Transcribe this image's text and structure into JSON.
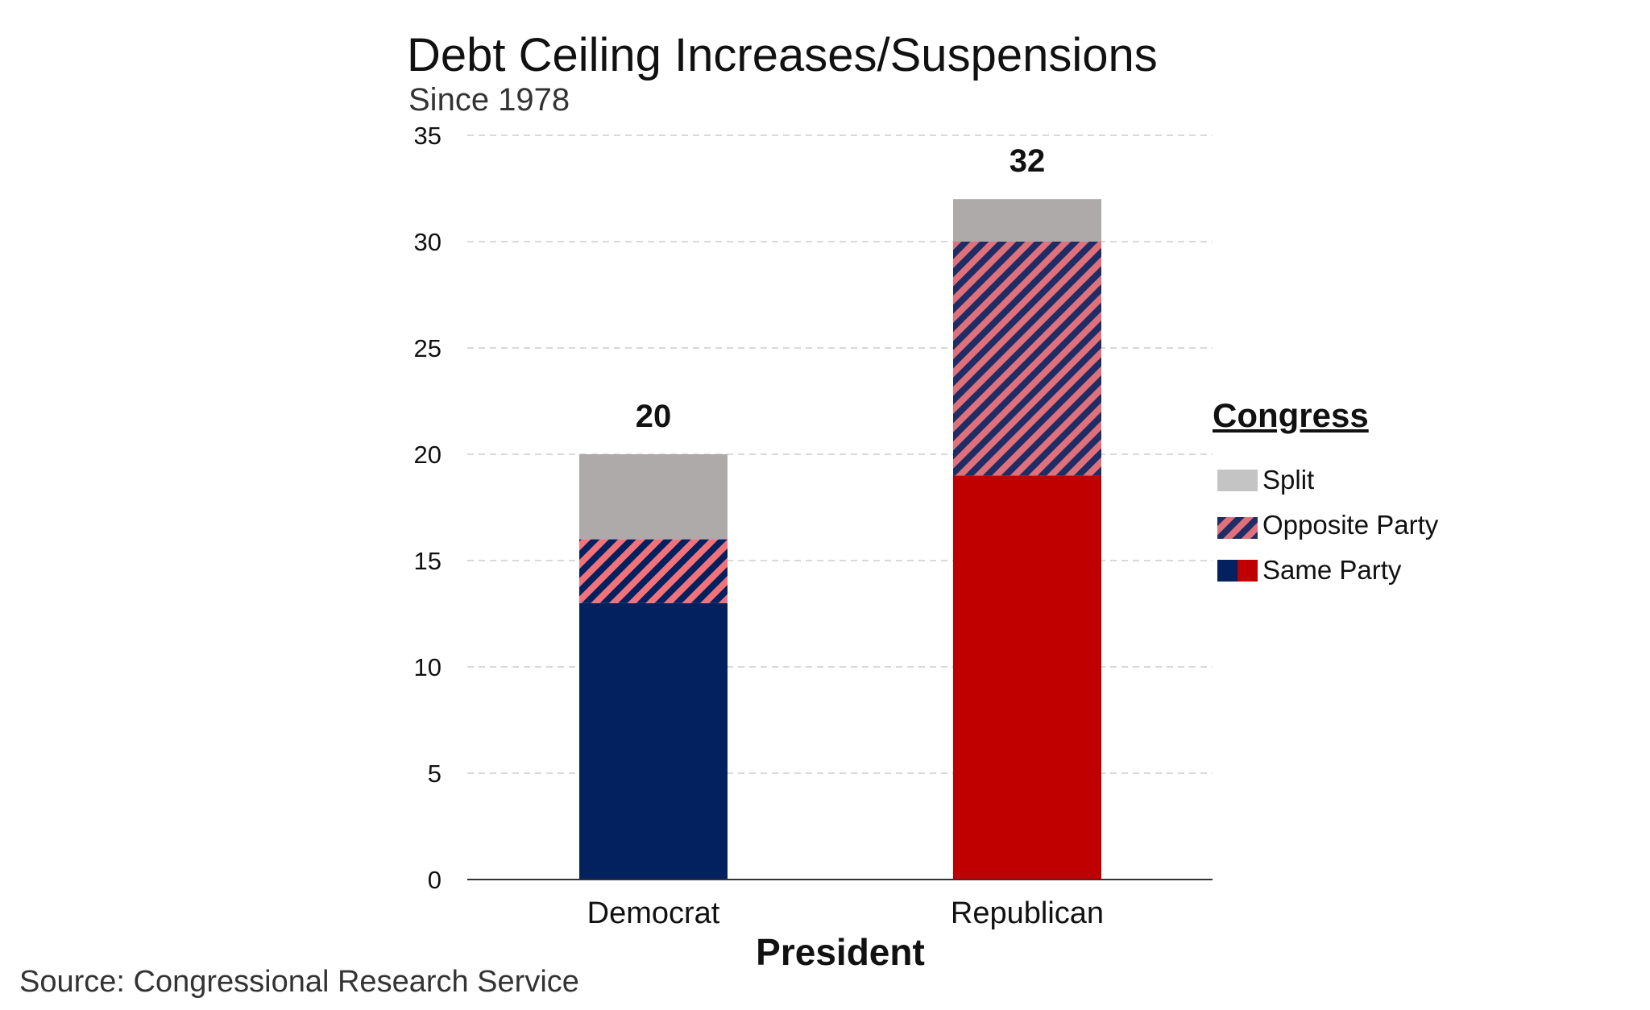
{
  "chart_data": {
    "type": "bar",
    "stacked": true,
    "title": "Debt Ceiling Increases/Suspensions",
    "subtitle": "Since 1978",
    "xlabel": "President",
    "ylabel": "",
    "ylim": [
      0,
      35
    ],
    "yticks": [
      0,
      5,
      10,
      15,
      20,
      25,
      30,
      35
    ],
    "grid": true,
    "categories": [
      "Democrat",
      "Republican"
    ],
    "series": [
      {
        "name": "Same Party",
        "values": [
          13,
          19
        ]
      },
      {
        "name": "Opposite Party",
        "values": [
          3,
          11
        ]
      },
      {
        "name": "Split",
        "values": [
          4,
          2
        ]
      }
    ],
    "totals": [
      20,
      32
    ],
    "colors": {
      "democrat_same": "#03205f",
      "republican_same": "#c00000",
      "democrat_opposite_stripe": "#f2727a",
      "democrat_opposite_stripe_alt": "#03205f",
      "republican_opposite_stripe": "#1f2d66",
      "republican_opposite_stripe_alt": "#e0707a",
      "split": "#aeaaaa",
      "grid": "#d9d9d9",
      "axis": "#333333"
    },
    "legend": {
      "title": "Congress",
      "placement": "right",
      "items": [
        "Split",
        "Opposite Party",
        "Same Party"
      ]
    },
    "source": "Source: Congressional Research Service"
  }
}
